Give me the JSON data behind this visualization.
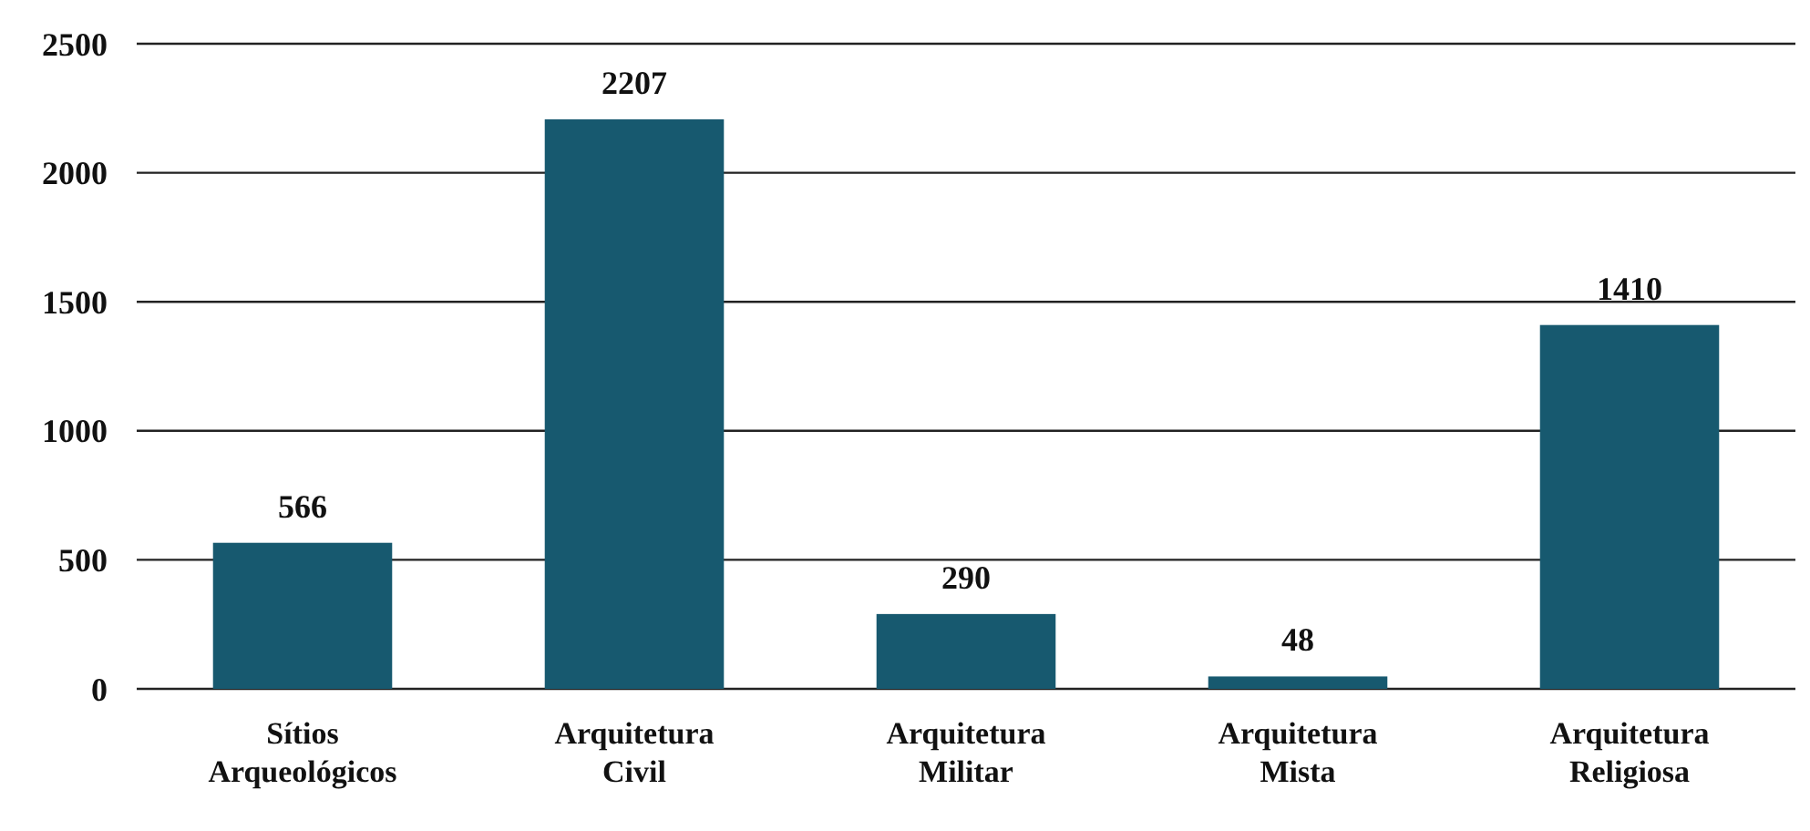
{
  "chart_data": {
    "type": "bar",
    "categories": [
      "Sítios Arqueológicos",
      "Arquitetura Civil",
      "Arquitetura Militar",
      "Arquitetura Mista",
      "Arquitetura Religiosa"
    ],
    "values": [
      566,
      2207,
      290,
      48,
      1410
    ],
    "color": "#17596f",
    "data_labels": true,
    "grid": "y",
    "ylim": [
      0,
      2500
    ],
    "yticks": [
      0,
      500,
      1000,
      1500,
      2000,
      2500
    ]
  }
}
